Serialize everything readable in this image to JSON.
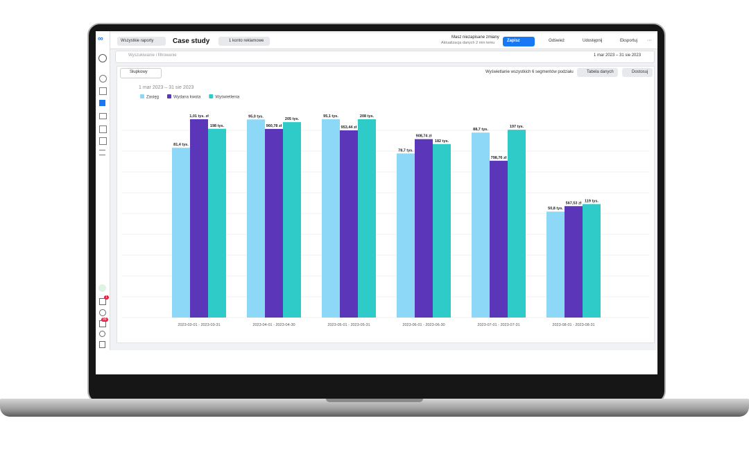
{
  "toolbar": {
    "back": "Wszystkie raporty",
    "title": "Case study",
    "account": "1 konto reklamowe",
    "unsaved": "Masz niezapisane zmiany",
    "updated": "Aktualizacja danych 2 min temu",
    "save": "Zapisz",
    "refresh": "Odśwież",
    "share": "Udostępnij",
    "export": "Eksportuj",
    "more": "···"
  },
  "filter": {
    "search": "Wyszukiwanie i filtrowanie",
    "date_range": "1 mar 2023 – 31 sie 2023"
  },
  "sidebar": {
    "badges": [
      "1",
      "99"
    ]
  },
  "chart_toolbar": {
    "chart_kind": "Słupkowy",
    "segments": "Wyświetlanie wszystkich 6 segmentów podziału",
    "table": "Tabela danych",
    "customize": "Dostosuj"
  },
  "chart_data": {
    "type": "bar",
    "title": "1 mar 2023 – 31 sie 2023",
    "categories": [
      "2023-03-01 - 2023-03-31",
      "2023-04-01 - 2023-04-30",
      "2023-05-01 - 2023-05-31",
      "2023-06-01 - 2023-06-30",
      "2023-07-01 - 2023-07-31",
      "2023-08-01 - 2023-08-31"
    ],
    "series": [
      {
        "name": "Zasięg",
        "color": "#8dd7f7",
        "values": [
          81.4,
          95.0,
          95.1,
          78.7,
          88.7,
          50.8
        ],
        "value_labels": [
          "81,4 tys.",
          "95,0 tys.",
          "95,1 tys.",
          "78,7 tys.",
          "88,7 tys.",
          "50,8 tys."
        ]
      },
      {
        "name": "Wydana kwota",
        "color": "#5b36b8",
        "values": [
          1010,
          960.78,
          953.44,
          908.74,
          798.76,
          567.53
        ],
        "value_labels": [
          "1,01 tys. zł",
          "960,78 zł",
          "953,44 zł",
          "908,74 zł",
          "798,76 zł",
          "567,53 zł"
        ]
      },
      {
        "name": "Wyświetlenia",
        "color": "#2ecbc9",
        "values": [
          198,
          205,
          208,
          182,
          197,
          119
        ],
        "value_labels": [
          "198 tys.",
          "205 tys.",
          "208 tys.",
          "182 tys.",
          "197 tys.",
          "119 tys."
        ]
      }
    ]
  }
}
